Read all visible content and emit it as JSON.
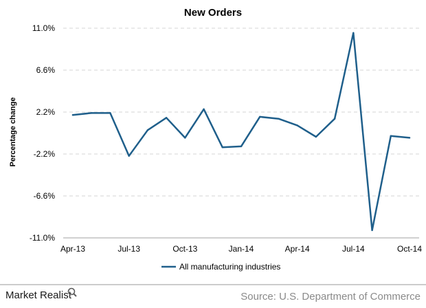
{
  "chart_data": {
    "type": "line",
    "title": "New Orders",
    "xlabel": "",
    "ylabel": "Percentage change",
    "y_ticks": [
      "11.0%",
      "6.6%",
      "2.2%",
      "-2.2%",
      "-6.6%",
      "-11.0%"
    ],
    "y_tick_values": [
      11.0,
      6.6,
      2.2,
      -2.2,
      -6.6,
      -11.0
    ],
    "ylim": [
      -11.0,
      11.0
    ],
    "x_ticks": [
      "Apr-13",
      "Jul-13",
      "Oct-13",
      "Jan-14",
      "Apr-14",
      "Jul-14",
      "Oct-14"
    ],
    "x_tick_index": [
      0,
      3,
      6,
      9,
      12,
      15,
      18
    ],
    "categories": [
      "Apr-13",
      "May-13",
      "Jun-13",
      "Jul-13",
      "Aug-13",
      "Sep-13",
      "Oct-13",
      "Nov-13",
      "Dec-13",
      "Jan-14",
      "Feb-14",
      "Mar-14",
      "Apr-14",
      "May-14",
      "Jun-14",
      "Jul-14",
      "Aug-14",
      "Sep-14",
      "Oct-14"
    ],
    "grid": true,
    "legend_position": "bottom",
    "series": [
      {
        "name": "All manufacturing industries",
        "color": "#1f5f8b",
        "values": [
          1.9,
          2.1,
          2.1,
          -2.4,
          0.3,
          1.6,
          -0.5,
          2.5,
          -1.5,
          -1.4,
          1.7,
          1.5,
          0.8,
          -0.4,
          1.5,
          10.5,
          -10.2,
          -0.3,
          -0.5
        ]
      }
    ]
  },
  "footer": {
    "brand": "Market Realist",
    "brand_icon": "magnifier-icon",
    "source": "Source: U.S. Department of Commerce"
  }
}
